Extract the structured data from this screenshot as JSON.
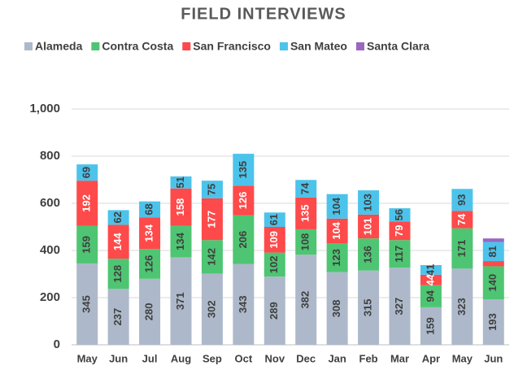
{
  "chart_data": {
    "type": "stacked_bar",
    "title": "FIELD INTERVIEWS",
    "categories": [
      "May",
      "Jun",
      "Jul",
      "Aug",
      "Sep",
      "Oct",
      "Nov",
      "Dec",
      "Jan",
      "Feb",
      "Mar",
      "Apr",
      "May",
      "Jun"
    ],
    "series": [
      {
        "name": "Alameda",
        "color": "#adb9ca",
        "values": [
          345,
          237,
          280,
          371,
          302,
          343,
          289,
          382,
          308,
          315,
          327,
          159,
          323,
          193
        ]
      },
      {
        "name": "Contra Costa",
        "color": "#4ec572",
        "values": [
          159,
          128,
          126,
          134,
          142,
          206,
          102,
          108,
          123,
          136,
          117,
          94,
          171,
          140
        ]
      },
      {
        "name": "San Francisco",
        "color": "#fe4a4a",
        "values": [
          192,
          144,
          134,
          158,
          177,
          126,
          109,
          135,
          104,
          101,
          79,
          44,
          74,
          22
        ]
      },
      {
        "name": "San Mateo",
        "color": "#4cc3eb",
        "values": [
          69,
          62,
          68,
          51,
          75,
          135,
          61,
          74,
          104,
          103,
          56,
          41,
          93,
          81
        ]
      },
      {
        "name": "Santa Clara",
        "color": "#9a66c2",
        "values": [
          0,
          0,
          0,
          0,
          0,
          0,
          0,
          0,
          0,
          0,
          0,
          0,
          0,
          15
        ]
      }
    ],
    "ylim": [
      0,
      1000
    ],
    "yticks": [
      0,
      200,
      400,
      600,
      800,
      {
        "value": 1000,
        "label": "1,000"
      }
    ],
    "grid": true
  }
}
